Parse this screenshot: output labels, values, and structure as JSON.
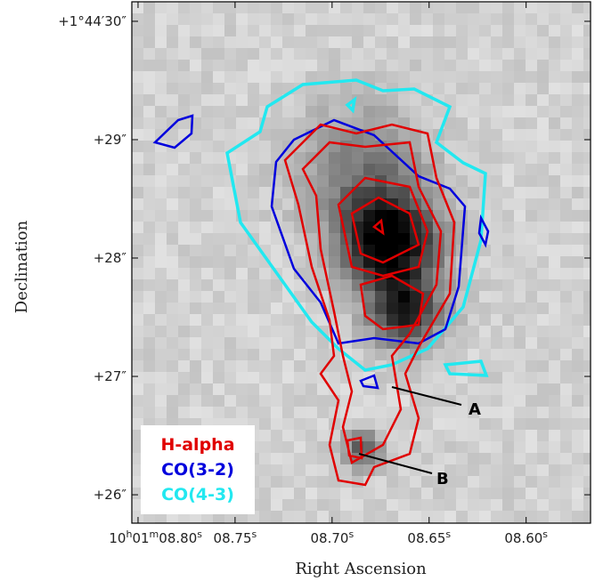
{
  "chart_data": {
    "type": "image",
    "xlabel": "Right Ascension",
    "ylabel": "Declination",
    "xlim": [
      8.8032,
      8.5668
    ],
    "xticks": [
      {
        "value": 8.8,
        "label": "10h01m08.80s"
      },
      {
        "value": 8.75,
        "label": "08.75s"
      },
      {
        "value": 8.7,
        "label": "08.70s"
      },
      {
        "value": 8.65,
        "label": "08.65s"
      },
      {
        "value": 8.6,
        "label": "08.60s"
      }
    ],
    "ylim": [
      25.76,
      30.165
    ],
    "yticks": [
      {
        "value": 30,
        "label": "+1°44′30″"
      },
      {
        "value": 29,
        "label": "+29″"
      },
      {
        "value": 28,
        "label": "+28″"
      },
      {
        "value": 27,
        "label": "+27″"
      },
      {
        "value": 26,
        "label": "+26″"
      }
    ],
    "series": [
      {
        "name": "H-alpha",
        "color": "#e00000"
      },
      {
        "name": "CO(3-2)",
        "color": "#0000dd"
      },
      {
        "name": "CO(4-3)",
        "color": "#22e8f0"
      }
    ],
    "annotations": [
      "A",
      "B"
    ]
  }
}
